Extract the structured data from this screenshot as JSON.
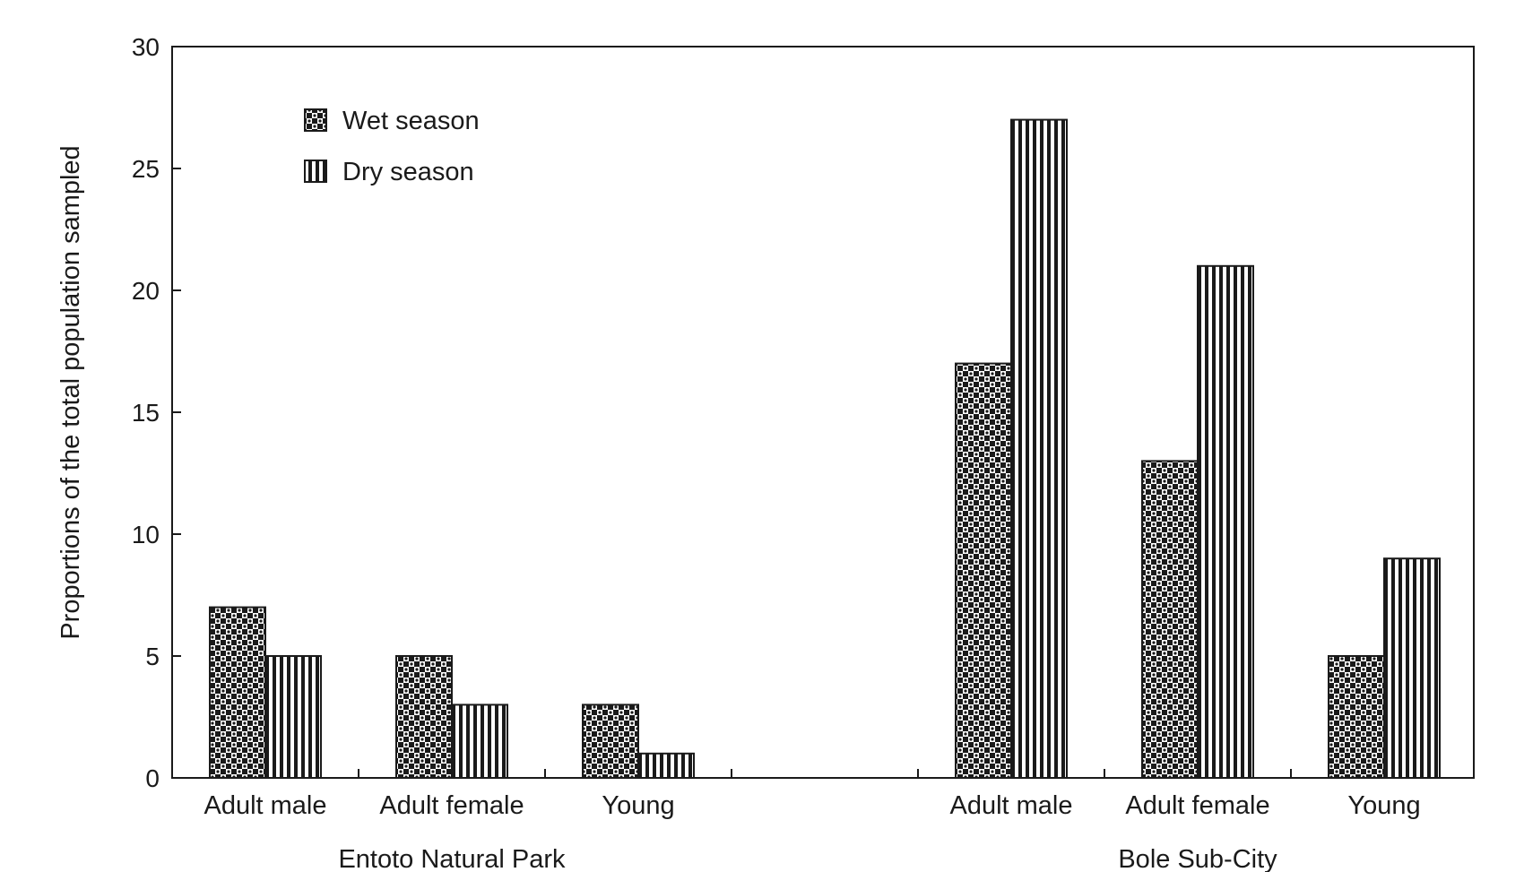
{
  "chart_data": {
    "type": "bar",
    "title": "",
    "xlabel": "",
    "ylabel": "Proportions of the total population sampled",
    "ylim": [
      0,
      30
    ],
    "yticks": [
      0,
      5,
      10,
      15,
      20,
      25,
      30
    ],
    "grid": false,
    "legend_position": "top-left",
    "groups": [
      {
        "name": "Entoto Natural Park",
        "categories": [
          "Adult male",
          "Adult female",
          "Young"
        ]
      },
      {
        "name": "Bole Sub-City",
        "categories": [
          "Adult male",
          "Adult female",
          "Young"
        ]
      }
    ],
    "series": [
      {
        "name": "Wet season",
        "pattern": "checkered",
        "values": [
          [
            7,
            5,
            3
          ],
          [
            17,
            13,
            5
          ]
        ]
      },
      {
        "name": "Dry season",
        "pattern": "vertical-stripes",
        "values": [
          [
            5,
            3,
            1
          ],
          [
            27,
            21,
            9
          ]
        ]
      }
    ],
    "colors": {
      "ink": "#1a1a1a",
      "background": "#ffffff"
    }
  }
}
